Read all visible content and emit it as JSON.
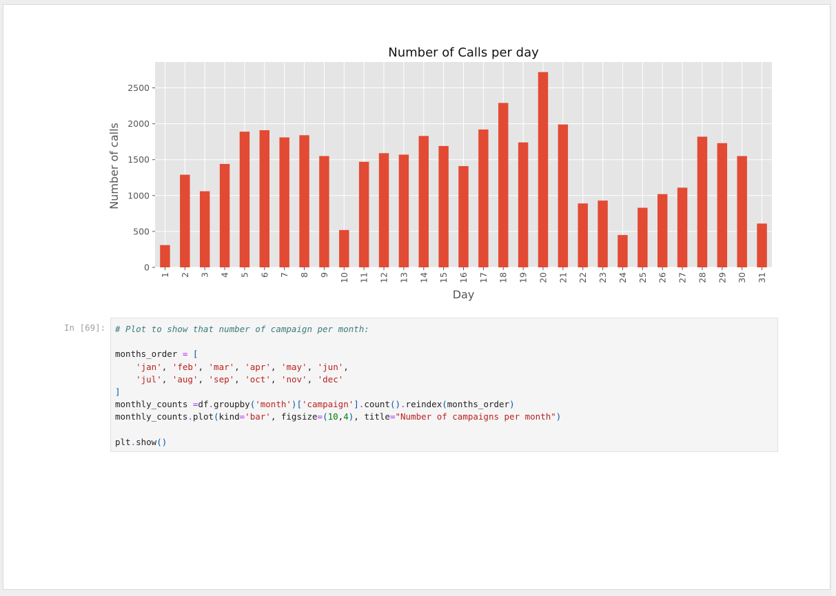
{
  "cell": {
    "prompt": "In [69]:",
    "code_lines": [
      [
        {
          "t": "# Plot to show that number of campaign per month:",
          "c": "com"
        }
      ],
      [
        {
          "t": ""
        }
      ],
      [
        {
          "t": "months_order "
        },
        {
          "t": "=",
          "c": "op"
        },
        {
          "t": " "
        },
        {
          "t": "[",
          "c": "br"
        }
      ],
      [
        {
          "t": "    "
        },
        {
          "t": "'jan'",
          "c": "str"
        },
        {
          "t": ", "
        },
        {
          "t": "'feb'",
          "c": "str"
        },
        {
          "t": ", "
        },
        {
          "t": "'mar'",
          "c": "str"
        },
        {
          "t": ", "
        },
        {
          "t": "'apr'",
          "c": "str"
        },
        {
          "t": ", "
        },
        {
          "t": "'may'",
          "c": "str"
        },
        {
          "t": ", "
        },
        {
          "t": "'jun'",
          "c": "str"
        },
        {
          "t": ","
        }
      ],
      [
        {
          "t": "    "
        },
        {
          "t": "'jul'",
          "c": "str"
        },
        {
          "t": ", "
        },
        {
          "t": "'aug'",
          "c": "str"
        },
        {
          "t": ", "
        },
        {
          "t": "'sep'",
          "c": "str"
        },
        {
          "t": ", "
        },
        {
          "t": "'oct'",
          "c": "str"
        },
        {
          "t": ", "
        },
        {
          "t": "'nov'",
          "c": "str"
        },
        {
          "t": ", "
        },
        {
          "t": "'dec'",
          "c": "str"
        }
      ],
      [
        {
          "t": "]",
          "c": "br"
        }
      ],
      [
        {
          "t": "monthly_counts "
        },
        {
          "t": "=",
          "c": "op"
        },
        {
          "t": "df"
        },
        {
          "t": ".",
          "c": "op"
        },
        {
          "t": "groupby"
        },
        {
          "t": "(",
          "c": "br"
        },
        {
          "t": "'month'",
          "c": "str"
        },
        {
          "t": ")[",
          "c": "br"
        },
        {
          "t": "'campaign'",
          "c": "str"
        },
        {
          "t": "]",
          "c": "br"
        },
        {
          "t": ".",
          "c": "op"
        },
        {
          "t": "count"
        },
        {
          "t": "()",
          "c": "br"
        },
        {
          "t": ".",
          "c": "op"
        },
        {
          "t": "reindex"
        },
        {
          "t": "(",
          "c": "br"
        },
        {
          "t": "months_order"
        },
        {
          "t": ")",
          "c": "br"
        }
      ],
      [
        {
          "t": "monthly_counts"
        },
        {
          "t": ".",
          "c": "op"
        },
        {
          "t": "plot"
        },
        {
          "t": "(",
          "c": "br"
        },
        {
          "t": "kind"
        },
        {
          "t": "=",
          "c": "op"
        },
        {
          "t": "'bar'",
          "c": "str"
        },
        {
          "t": ", figsize"
        },
        {
          "t": "=",
          "c": "op"
        },
        {
          "t": "(",
          "c": "br"
        },
        {
          "t": "10",
          "c": "num"
        },
        {
          "t": ","
        },
        {
          "t": "4",
          "c": "num"
        },
        {
          "t": ")",
          "c": "br"
        },
        {
          "t": ", title"
        },
        {
          "t": "=",
          "c": "op"
        },
        {
          "t": "\"Number of campaigns per month\"",
          "c": "str"
        },
        {
          "t": ")",
          "c": "br"
        }
      ],
      [
        {
          "t": ""
        }
      ],
      [
        {
          "t": "plt"
        },
        {
          "t": ".",
          "c": "op"
        },
        {
          "t": "show"
        },
        {
          "t": "()",
          "c": "br"
        }
      ]
    ]
  },
  "chart_data": {
    "type": "bar",
    "title": "Number of Calls per day",
    "xlabel": "Day",
    "ylabel": "Number of calls",
    "categories": [
      "1",
      "2",
      "3",
      "4",
      "5",
      "6",
      "7",
      "8",
      "9",
      "10",
      "11",
      "12",
      "13",
      "14",
      "15",
      "16",
      "17",
      "18",
      "19",
      "20",
      "21",
      "22",
      "23",
      "24",
      "25",
      "26",
      "27",
      "28",
      "29",
      "30",
      "31"
    ],
    "values": [
      310,
      1290,
      1060,
      1440,
      1890,
      1910,
      1810,
      1840,
      1550,
      520,
      1470,
      1590,
      1570,
      1830,
      1690,
      1410,
      1920,
      2290,
      1740,
      2720,
      1990,
      890,
      930,
      450,
      830,
      1020,
      1110,
      1820,
      1730,
      1550,
      610
    ],
    "yticks": [
      0,
      500,
      1000,
      1500,
      2000,
      2500
    ],
    "ylim": [
      0,
      2860
    ],
    "grid": true,
    "bar_color": "#e24a33",
    "plot_background": "#e5e5e5"
  }
}
